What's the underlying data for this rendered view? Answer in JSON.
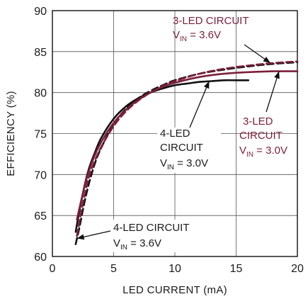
{
  "chart_data": {
    "type": "line",
    "xlabel": "LED CURRENT (mA)",
    "ylabel": "EFFICIENCY (%)",
    "xlim": [
      0,
      20
    ],
    "ylim": [
      60,
      90
    ],
    "xticks": [
      0,
      5,
      10,
      15,
      20
    ],
    "yticks": [
      60,
      65,
      70,
      75,
      80,
      85,
      90
    ],
    "grid": true,
    "colors": {
      "black": "#111111",
      "red": "#7b1f3a",
      "grid": "#555555"
    },
    "series": [
      {
        "name": "4-LED CIRCUIT VIN = 3.0V",
        "style": "solid",
        "color": "#111111",
        "x": [
          1.9,
          2.2,
          2.6,
          3.0,
          3.5,
          4.0,
          5.0,
          6.0,
          7.0,
          8.0,
          9.0,
          10.0,
          11.0,
          12.0,
          13.0,
          14.0,
          15.0,
          16.0
        ],
        "y": [
          63.0,
          65.5,
          68.5,
          70.8,
          72.8,
          74.5,
          76.8,
          78.3,
          79.3,
          80.0,
          80.5,
          80.9,
          81.1,
          81.3,
          81.4,
          81.5,
          81.5,
          81.5
        ]
      },
      {
        "name": "4-LED CIRCUIT VIN = 3.6V",
        "style": "dashed",
        "color": "#111111",
        "x": [
          1.9,
          2.2,
          2.6,
          3.0,
          3.5,
          4.0,
          5.0,
          6.0,
          7.0,
          8.0,
          9.0,
          10.0,
          12.0,
          14.0,
          16.0,
          18.0,
          20.0
        ],
        "y": [
          61.5,
          63.5,
          66.5,
          69.0,
          71.5,
          73.3,
          76.2,
          78.0,
          79.3,
          80.2,
          80.9,
          81.5,
          82.3,
          82.8,
          83.2,
          83.5,
          83.7
        ]
      },
      {
        "name": "3-LED CIRCUIT VIN = 3.0V",
        "style": "solid",
        "color": "#7b1f3a",
        "x": [
          2.0,
          2.3,
          2.7,
          3.0,
          3.5,
          4.0,
          5.0,
          6.0,
          7.0,
          8.0,
          9.0,
          10.0,
          12.0,
          14.0,
          16.0,
          18.0,
          20.0
        ],
        "y": [
          64.5,
          66.5,
          69.0,
          70.5,
          72.5,
          74.0,
          76.3,
          77.9,
          79.1,
          80.0,
          80.7,
          81.2,
          81.9,
          82.3,
          82.5,
          82.6,
          82.6
        ]
      },
      {
        "name": "3-LED CIRCUIT VIN = 3.6V",
        "style": "dashed",
        "color": "#7b1f3a",
        "x": [
          2.0,
          2.3,
          2.7,
          3.0,
          3.5,
          4.0,
          5.0,
          6.0,
          7.0,
          8.0,
          9.0,
          10.0,
          12.0,
          14.0,
          16.0,
          18.0,
          20.0
        ],
        "y": [
          62.5,
          65.0,
          68.0,
          69.8,
          71.8,
          73.4,
          75.9,
          77.7,
          79.0,
          80.0,
          80.8,
          81.4,
          82.3,
          82.9,
          83.3,
          83.6,
          83.8
        ]
      }
    ],
    "annotations": [
      {
        "key": "led3_36",
        "lines": [
          "3-LED CIRCUIT",
          "V",
          "IN",
          " = 3.6V"
        ],
        "color": "#7b1f3a",
        "target": [
          17.8,
          83.6
        ]
      },
      {
        "key": "led3_30",
        "lines": [
          "3-LED",
          "CIRCUIT",
          "V",
          "IN",
          " = 3.0V"
        ],
        "color": "#7b1f3a",
        "target": [
          18.5,
          82.6
        ]
      },
      {
        "key": "led4_30",
        "lines": [
          "4-LED",
          "CIRCUIT",
          "V",
          "IN",
          " = 3.0V"
        ],
        "color": "#1a1a1a",
        "target": [
          12.8,
          81.4
        ]
      },
      {
        "key": "led4_36",
        "lines": [
          "4-LED CIRCUIT",
          "V",
          "IN",
          " = 3.6V"
        ],
        "color": "#1a1a1a",
        "target": [
          2.0,
          62.2
        ]
      }
    ]
  }
}
